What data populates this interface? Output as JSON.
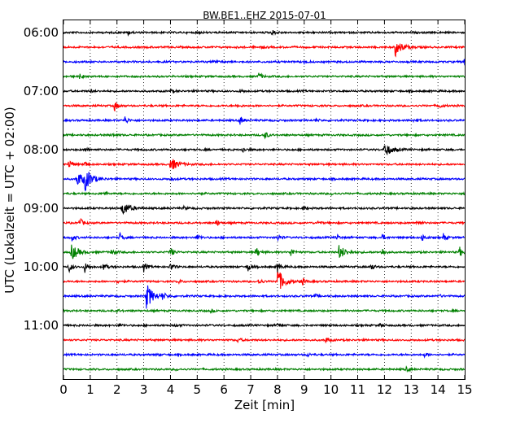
{
  "chart_data": {
    "type": "line",
    "title": "BW.BE1..EHZ 2015-07-01",
    "xlabel": "Zeit  [min]",
    "ylabel": "UTC (Lokalzeit = UTC + 02:00)",
    "xlim": [
      0,
      15
    ],
    "x_ticks": [
      0,
      1,
      2,
      3,
      4,
      5,
      6,
      7,
      8,
      9,
      10,
      11,
      12,
      13,
      14,
      15
    ],
    "x_grid": "dotted vertical lines at each minute",
    "y_tick_labels": [
      "06:00",
      "07:00",
      "08:00",
      "09:00",
      "10:00",
      "11:00"
    ],
    "trace_interval_minutes": 15,
    "start_time": "06:00",
    "trace_count": 24,
    "color_cycle": [
      "#000000",
      "#ff0000",
      "#0000ff",
      "#008000"
    ],
    "traces": [
      {
        "start": "06:00",
        "color": "#000000",
        "events": [
          [
            2.4,
            0.25
          ],
          [
            7.8,
            0.3
          ],
          [
            5.0,
            0.12
          ]
        ]
      },
      {
        "start": "06:15",
        "color": "#ff0000",
        "events": [
          [
            12.4,
            1.0
          ],
          [
            7.4,
            0.15
          ]
        ]
      },
      {
        "start": "06:30",
        "color": "#0000ff",
        "events": [
          [
            5.6,
            0.3
          ],
          [
            9.0,
            0.2
          ],
          [
            15.0,
            0.7
          ]
        ]
      },
      {
        "start": "06:45",
        "color": "#008000",
        "events": [
          [
            0.6,
            0.25
          ],
          [
            7.3,
            0.4
          ]
        ]
      },
      {
        "start": "07:00",
        "color": "#000000",
        "events": [
          [
            1.0,
            0.15
          ],
          [
            4.0,
            0.15
          ],
          [
            6.6,
            0.2
          ]
        ]
      },
      {
        "start": "07:15",
        "color": "#ff0000",
        "events": [
          [
            1.9,
            0.6
          ],
          [
            6.5,
            0.15
          ],
          [
            14.0,
            0.35
          ]
        ]
      },
      {
        "start": "07:30",
        "color": "#0000ff",
        "events": [
          [
            2.3,
            0.45
          ],
          [
            6.6,
            0.5
          ],
          [
            9.4,
            0.2
          ],
          [
            13.1,
            0.2
          ]
        ]
      },
      {
        "start": "07:45",
        "color": "#008000",
        "events": [
          [
            7.5,
            0.55
          ],
          [
            1.8,
            0.15
          ]
        ]
      },
      {
        "start": "08:00",
        "color": "#000000",
        "events": [
          [
            0.8,
            0.3
          ],
          [
            6.7,
            0.3
          ],
          [
            12.0,
            0.8
          ]
        ]
      },
      {
        "start": "08:15",
        "color": "#ff0000",
        "events": [
          [
            0.2,
            0.6
          ],
          [
            4.0,
            0.8
          ],
          [
            0.8,
            0.3
          ]
        ]
      },
      {
        "start": "08:30",
        "color": "#0000ff",
        "events": [
          [
            0.5,
            0.9
          ],
          [
            0.8,
            1.2
          ],
          [
            4.0,
            0.25
          ]
        ]
      },
      {
        "start": "08:45",
        "color": "#008000",
        "events": [
          [
            1.5,
            0.2
          ],
          [
            5.0,
            0.15
          ],
          [
            10.0,
            0.15
          ]
        ]
      },
      {
        "start": "09:00",
        "color": "#000000",
        "events": [
          [
            2.2,
            0.9
          ],
          [
            9.0,
            0.25
          ],
          [
            4.5,
            0.15
          ]
        ]
      },
      {
        "start": "09:15",
        "color": "#ff0000",
        "events": [
          [
            0.6,
            0.6
          ],
          [
            5.7,
            0.4
          ],
          [
            9.5,
            0.2
          ],
          [
            13.2,
            0.3
          ]
        ]
      },
      {
        "start": "09:30",
        "color": "#0000ff",
        "events": [
          [
            2.1,
            0.5
          ],
          [
            0.3,
            0.4
          ],
          [
            5.0,
            0.4
          ],
          [
            8.0,
            0.4
          ],
          [
            10.2,
            0.4
          ],
          [
            11.9,
            0.4
          ],
          [
            13.4,
            0.4
          ],
          [
            14.2,
            0.4
          ]
        ]
      },
      {
        "start": "09:45",
        "color": "#008000",
        "events": [
          [
            0.3,
            0.9
          ],
          [
            1.8,
            0.5
          ],
          [
            4.0,
            0.6
          ],
          [
            7.2,
            0.6
          ],
          [
            8.5,
            0.5
          ],
          [
            10.3,
            0.8
          ],
          [
            11.9,
            0.5
          ],
          [
            14.8,
            0.6
          ]
        ]
      },
      {
        "start": "10:00",
        "color": "#000000",
        "events": [
          [
            0.2,
            0.6
          ],
          [
            0.8,
            0.6
          ],
          [
            1.5,
            0.5
          ],
          [
            3.0,
            0.5
          ],
          [
            4.0,
            0.5
          ],
          [
            6.9,
            0.5
          ],
          [
            8.0,
            0.6
          ],
          [
            11.5,
            0.4
          ]
        ]
      },
      {
        "start": "10:15",
        "color": "#ff0000",
        "events": [
          [
            8.0,
            1.4
          ],
          [
            7.3,
            0.4
          ],
          [
            8.9,
            0.5
          ],
          [
            2.0,
            0.2
          ],
          [
            4.3,
            0.2
          ]
        ]
      },
      {
        "start": "10:30",
        "color": "#0000ff",
        "events": [
          [
            3.1,
            1.4
          ],
          [
            3.7,
            0.4
          ],
          [
            9.4,
            0.2
          ],
          [
            14.0,
            0.2
          ]
        ]
      },
      {
        "start": "10:45",
        "color": "#008000",
        "events": [
          [
            2.0,
            0.15
          ],
          [
            5.5,
            0.15
          ]
        ]
      },
      {
        "start": "11:00",
        "color": "#000000",
        "events": [
          [
            2.1,
            0.15
          ],
          [
            4.2,
            0.15
          ],
          [
            8.0,
            0.25
          ],
          [
            11.8,
            0.15
          ]
        ]
      },
      {
        "start": "11:15",
        "color": "#ff0000",
        "events": [
          [
            6.5,
            0.3
          ],
          [
            9.8,
            0.3
          ]
        ]
      },
      {
        "start": "11:30",
        "color": "#0000ff",
        "events": [
          [
            9.1,
            0.25
          ],
          [
            13.5,
            0.2
          ],
          [
            3.5,
            0.1
          ]
        ]
      },
      {
        "start": "11:45",
        "color": "#008000",
        "events": [
          [
            12.8,
            0.25
          ],
          [
            4.2,
            0.1
          ]
        ]
      }
    ]
  }
}
